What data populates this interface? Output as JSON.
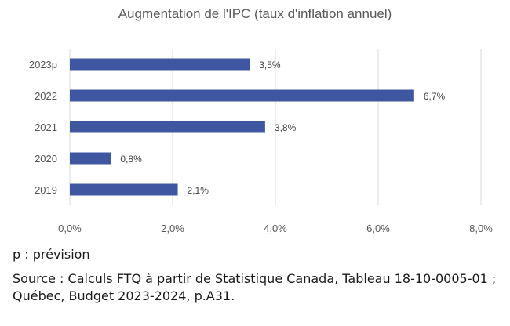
{
  "chart_data": {
    "type": "bar",
    "orientation": "horizontal",
    "title": "Augmentation de l'IPC (taux d'inflation annuel)",
    "categories": [
      "2023p",
      "2022",
      "2021",
      "2020",
      "2019"
    ],
    "values": [
      3.5,
      6.7,
      3.8,
      0.8,
      2.1
    ],
    "data_labels": [
      "3,5%",
      "6,7%",
      "3,8%",
      "0,8%",
      "2,1%"
    ],
    "xlim": [
      0,
      8
    ],
    "x_ticks": [
      0,
      2,
      4,
      6,
      8
    ],
    "x_tick_labels": [
      "0,0%",
      "2,0%",
      "4,0%",
      "6,0%",
      "8,0%"
    ],
    "grid": true,
    "bar_color": "#3f57a0",
    "grid_color": "#d9d9d9"
  },
  "notes": {
    "prevision": "p : prévision",
    "source": "Source : Calculs FTQ à partir de Statistique Canada, Tableau 18-10-0005-01 ; Québec, Budget 2023-2024, p.A31."
  }
}
